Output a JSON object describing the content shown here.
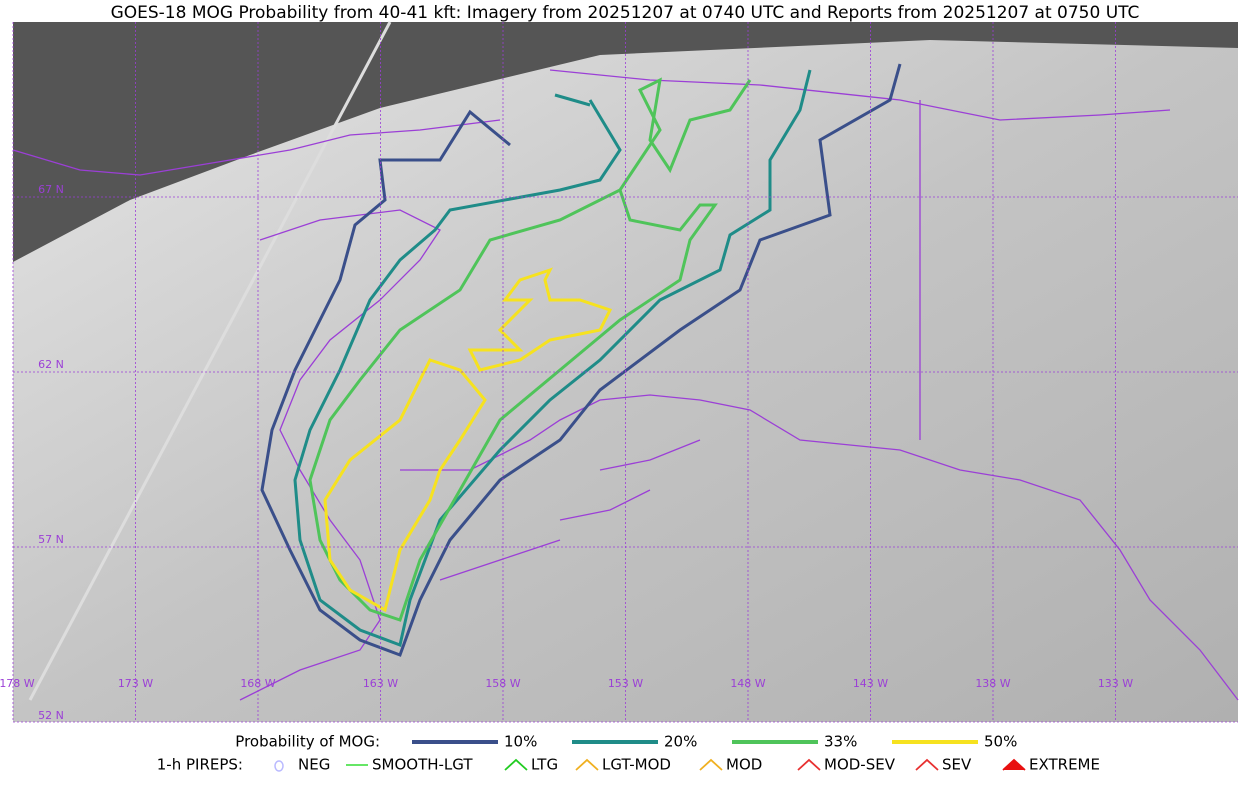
{
  "title": "GOES-18 MOG Probability from 40-41 kft: Imagery from 20251207 at 0740 UTC and Reports from 20251207 at 0750 UTC",
  "map": {
    "lat_labels": [
      "67 N",
      "62 N",
      "57 N",
      "52 N"
    ],
    "lon_labels": [
      "178 W",
      "173 W",
      "168 W",
      "163 W",
      "158 W",
      "153 W",
      "148 W",
      "143 W",
      "138 W",
      "133 W"
    ]
  },
  "legend": {
    "probability": {
      "label": "Probability of MOG:",
      "items": [
        {
          "name": "10%",
          "color": "#3a4f8a"
        },
        {
          "name": "20%",
          "color": "#1f8c88"
        },
        {
          "name": "33%",
          "color": "#4fc45a"
        },
        {
          "name": "50%",
          "color": "#f6e21f"
        }
      ]
    },
    "pireps": {
      "label": "1-h PIREPS:",
      "items": [
        {
          "name": "NEG",
          "color": "#b9b9ff"
        },
        {
          "name": "SMOOTH-LGT",
          "color": "#33dd33"
        },
        {
          "name": "LTG",
          "color": "#22cc22"
        },
        {
          "name": "LGT-MOD",
          "color": "#f0b020"
        },
        {
          "name": "MOD",
          "color": "#f0b020"
        },
        {
          "name": "MOD-SEV",
          "color": "#e83030"
        },
        {
          "name": "SEV",
          "color": "#e83030"
        },
        {
          "name": "EXTREME",
          "color": "#e81010"
        }
      ]
    }
  }
}
